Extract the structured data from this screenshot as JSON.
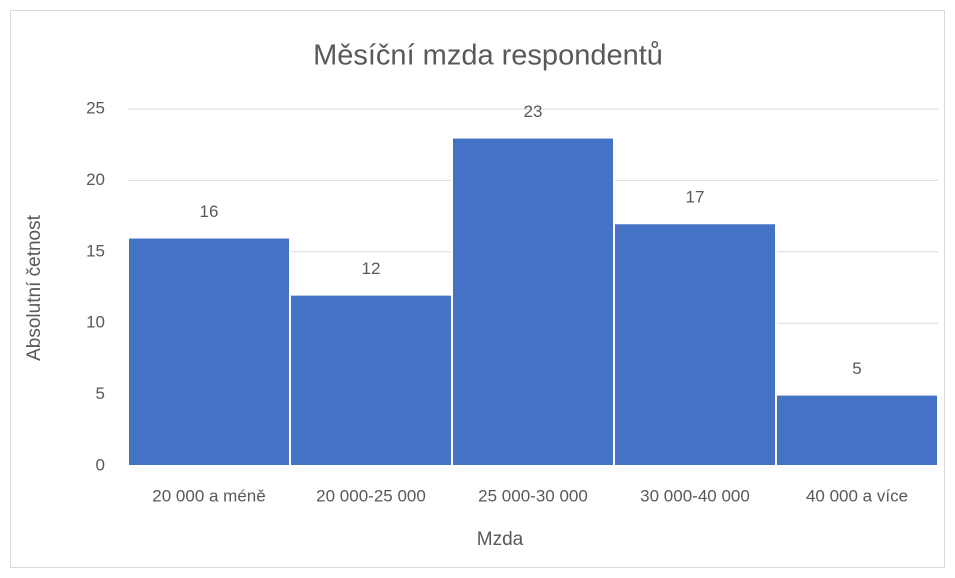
{
  "chart_data": {
    "type": "bar",
    "title": "Měsíční mzda respondentů",
    "x_label": "Mzda",
    "y_label": "Absolutní četnost",
    "categories": [
      "20 000 a méně",
      "20 000-25 000",
      "25 000-30 000",
      "30 000-40 000",
      "40 000 a více"
    ],
    "values": [
      16,
      12,
      23,
      17,
      5
    ],
    "color": "#4472c4",
    "ylim": [
      0,
      25
    ],
    "yticks": [
      0,
      5,
      10,
      15,
      20,
      25
    ],
    "grid": true
  }
}
